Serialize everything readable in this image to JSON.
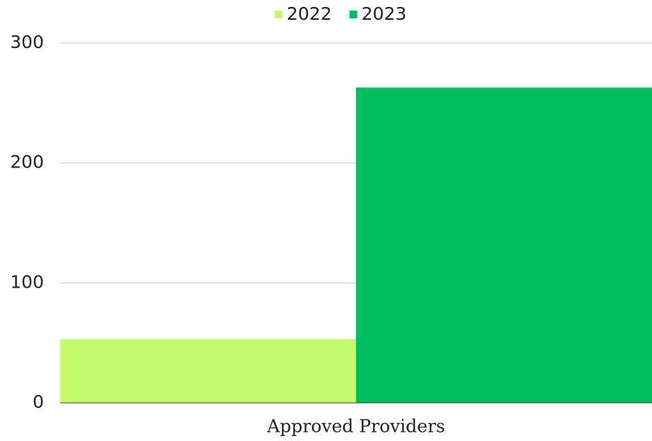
{
  "chart_data": {
    "type": "bar",
    "categories": [
      "Approved Providers"
    ],
    "series": [
      {
        "name": "2022",
        "color": "#c4fb6d",
        "values": [
          53
        ]
      },
      {
        "name": "2023",
        "color": "#01be60",
        "values": [
          263
        ]
      }
    ],
    "ylim": [
      0,
      300
    ],
    "yticks": [
      0,
      100,
      200,
      300
    ],
    "grid": true,
    "legend": "top"
  }
}
